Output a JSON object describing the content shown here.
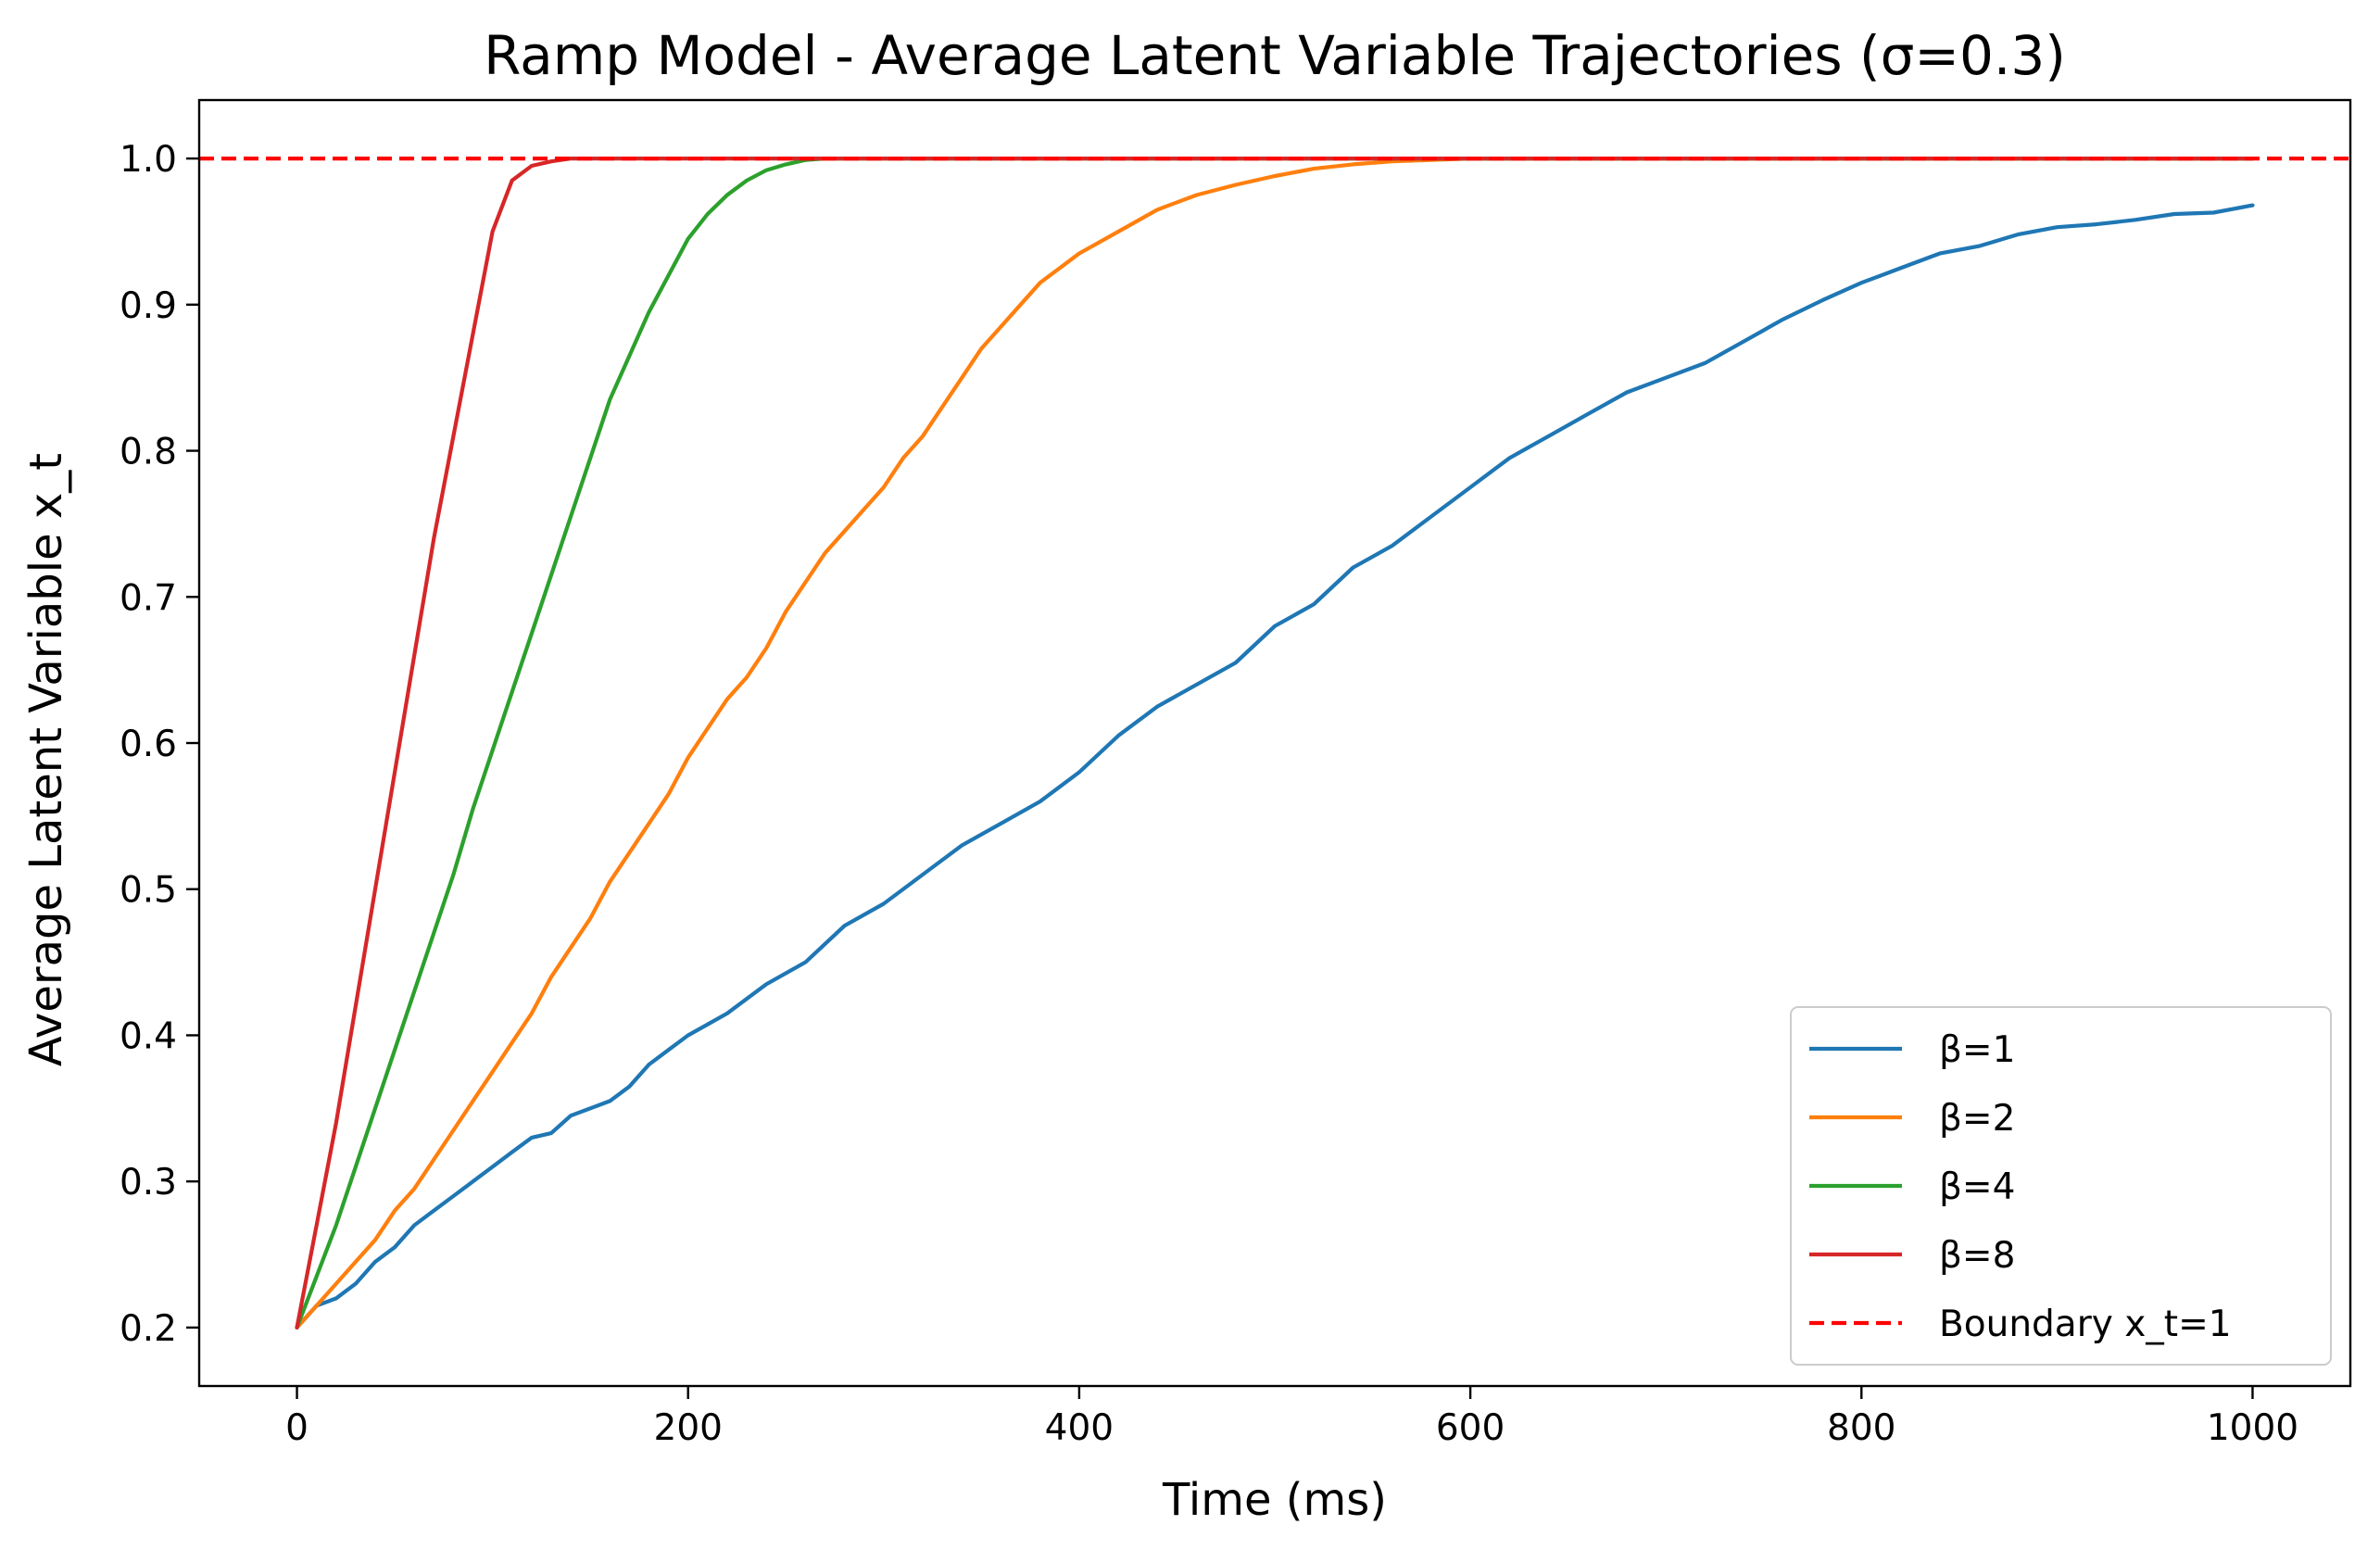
{
  "chart_data": {
    "type": "line",
    "title": "Ramp Model - Average Latent Variable Trajectories (σ=0.3)",
    "xlabel": "Time (ms)",
    "ylabel": "Average Latent Variable x_t",
    "xlim": [
      -50,
      1050
    ],
    "ylim": [
      0.16,
      1.04
    ],
    "xticks": [
      0,
      200,
      400,
      600,
      800,
      1000
    ],
    "yticks": [
      0.2,
      0.3,
      0.4,
      0.5,
      0.6,
      0.7,
      0.8,
      0.9,
      1.0
    ],
    "xtick_labels": [
      "0",
      "200",
      "400",
      "600",
      "800",
      "1000"
    ],
    "ytick_labels": [
      "0.2",
      "0.3",
      "0.4",
      "0.5",
      "0.6",
      "0.7",
      "0.8",
      "0.9",
      "1.0"
    ],
    "grid": false,
    "legend_position": "lower-right",
    "series": [
      {
        "name": "β=1",
        "color": "#1f77b4",
        "style": "solid",
        "x": [
          0,
          10,
          20,
          30,
          40,
          50,
          60,
          70,
          80,
          90,
          100,
          110,
          120,
          130,
          140,
          150,
          160,
          170,
          180,
          190,
          200,
          220,
          240,
          260,
          280,
          300,
          320,
          340,
          360,
          380,
          400,
          420,
          440,
          460,
          480,
          500,
          520,
          540,
          560,
          580,
          600,
          620,
          640,
          660,
          680,
          700,
          720,
          740,
          760,
          780,
          800,
          820,
          840,
          860,
          880,
          900,
          920,
          940,
          960,
          980,
          1000
        ],
        "values": [
          0.2,
          0.215,
          0.22,
          0.23,
          0.245,
          0.255,
          0.27,
          0.28,
          0.29,
          0.3,
          0.31,
          0.32,
          0.33,
          0.333,
          0.345,
          0.35,
          0.355,
          0.365,
          0.38,
          0.39,
          0.4,
          0.415,
          0.435,
          0.45,
          0.475,
          0.49,
          0.51,
          0.53,
          0.545,
          0.56,
          0.58,
          0.605,
          0.625,
          0.64,
          0.655,
          0.68,
          0.695,
          0.72,
          0.735,
          0.755,
          0.775,
          0.795,
          0.81,
          0.825,
          0.84,
          0.85,
          0.86,
          0.875,
          0.89,
          0.903,
          0.915,
          0.925,
          0.935,
          0.94,
          0.948,
          0.953,
          0.955,
          0.958,
          0.962,
          0.963,
          0.968
        ]
      },
      {
        "name": "β=2",
        "color": "#ff7f0e",
        "style": "solid",
        "x": [
          0,
          10,
          20,
          30,
          40,
          50,
          60,
          70,
          80,
          90,
          100,
          110,
          120,
          130,
          140,
          150,
          160,
          170,
          180,
          190,
          200,
          210,
          220,
          230,
          240,
          250,
          260,
          270,
          280,
          290,
          300,
          310,
          320,
          330,
          340,
          350,
          360,
          370,
          380,
          390,
          400,
          420,
          440,
          460,
          480,
          500,
          520,
          540,
          560,
          580,
          600,
          700,
          800,
          900,
          1000
        ],
        "values": [
          0.2,
          0.215,
          0.23,
          0.245,
          0.26,
          0.28,
          0.295,
          0.315,
          0.335,
          0.355,
          0.375,
          0.395,
          0.415,
          0.44,
          0.46,
          0.48,
          0.505,
          0.525,
          0.545,
          0.565,
          0.59,
          0.61,
          0.63,
          0.645,
          0.665,
          0.69,
          0.71,
          0.73,
          0.745,
          0.76,
          0.775,
          0.795,
          0.81,
          0.83,
          0.85,
          0.87,
          0.885,
          0.9,
          0.915,
          0.925,
          0.935,
          0.95,
          0.965,
          0.975,
          0.982,
          0.988,
          0.993,
          0.996,
          0.998,
          0.999,
          1.0,
          1.0,
          1.0,
          1.0,
          1.0
        ]
      },
      {
        "name": "β=4",
        "color": "#2ca02c",
        "style": "solid",
        "x": [
          0,
          10,
          20,
          30,
          40,
          50,
          60,
          70,
          80,
          90,
          100,
          110,
          120,
          130,
          140,
          150,
          160,
          170,
          180,
          190,
          200,
          210,
          220,
          230,
          240,
          250,
          260,
          270,
          280,
          300,
          400,
          500,
          600,
          700,
          800,
          900,
          1000
        ],
        "values": [
          0.2,
          0.235,
          0.27,
          0.31,
          0.35,
          0.39,
          0.43,
          0.47,
          0.51,
          0.555,
          0.595,
          0.635,
          0.675,
          0.715,
          0.755,
          0.795,
          0.835,
          0.865,
          0.895,
          0.92,
          0.945,
          0.962,
          0.975,
          0.985,
          0.992,
          0.996,
          0.999,
          1.0,
          1.0,
          1.0,
          1.0,
          1.0,
          1.0,
          1.0,
          1.0,
          1.0,
          1.0
        ]
      },
      {
        "name": "β=8",
        "color": "#d62728",
        "style": "solid",
        "x": [
          0,
          10,
          20,
          30,
          40,
          50,
          60,
          70,
          80,
          90,
          100,
          110,
          120,
          130,
          140,
          150,
          200,
          300,
          400,
          500,
          600,
          700,
          800,
          900,
          1000
        ],
        "values": [
          0.2,
          0.27,
          0.34,
          0.42,
          0.5,
          0.58,
          0.66,
          0.74,
          0.81,
          0.88,
          0.95,
          0.985,
          0.995,
          0.998,
          1.0,
          1.0,
          1.0,
          1.0,
          1.0,
          1.0,
          1.0,
          1.0,
          1.0,
          1.0,
          1.0
        ]
      },
      {
        "name": "Boundary x_t=1",
        "color": "#ff0000",
        "style": "dashed",
        "x": [
          -50,
          1050
        ],
        "values": [
          1.0,
          1.0
        ]
      }
    ]
  }
}
